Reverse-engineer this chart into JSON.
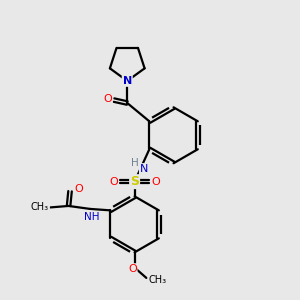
{
  "background_color": "#e8e8e8",
  "bond_color": "#000000",
  "atom_colors": {
    "N": "#0000cd",
    "O": "#ff0000",
    "S": "#cccc00",
    "H": "#708090",
    "C": "#000000"
  },
  "line_width": 1.6,
  "figsize": [
    3.0,
    3.0
  ],
  "dpi": 100,
  "xlim": [
    0,
    10
  ],
  "ylim": [
    0,
    10
  ]
}
